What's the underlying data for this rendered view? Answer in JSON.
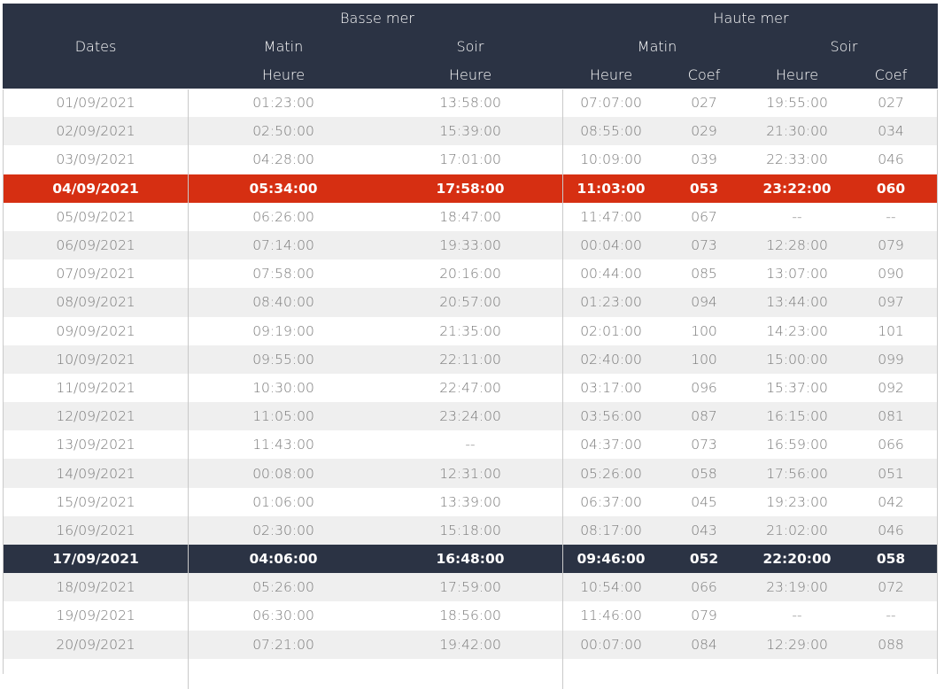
{
  "header": {
    "basse_mer": "Basse mer",
    "haute_mer": "Haute mer",
    "dates": "Dates",
    "matin": "Matin",
    "soir": "Soir",
    "heure": "Heure",
    "coef": "Coef"
  },
  "rows": [
    {
      "date": "01/09/2021",
      "bm_matin": "01:23:00",
      "bm_soir": "13:58:00",
      "hm_matin": "07:07:00",
      "hm_matin_coef": "027",
      "hm_soir": "19:55:00",
      "hm_soir_coef": "027",
      "style": "odd"
    },
    {
      "date": "02/09/2021",
      "bm_matin": "02:50:00",
      "bm_soir": "15:39:00",
      "hm_matin": "08:55:00",
      "hm_matin_coef": "029",
      "hm_soir": "21:30:00",
      "hm_soir_coef": "034",
      "style": "even"
    },
    {
      "date": "03/09/2021",
      "bm_matin": "04:28:00",
      "bm_soir": "17:01:00",
      "hm_matin": "10:09:00",
      "hm_matin_coef": "039",
      "hm_soir": "22:33:00",
      "hm_soir_coef": "046",
      "style": "odd"
    },
    {
      "date": "04/09/2021",
      "bm_matin": "05:34:00",
      "bm_soir": "17:58:00",
      "hm_matin": "11:03:00",
      "hm_matin_coef": "053",
      "hm_soir": "23:22:00",
      "hm_soir_coef": "060",
      "style": "hl-red"
    },
    {
      "date": "05/09/2021",
      "bm_matin": "06:26:00",
      "bm_soir": "18:47:00",
      "hm_matin": "11:47:00",
      "hm_matin_coef": "067",
      "hm_soir": "--",
      "hm_soir_coef": "--",
      "style": "odd"
    },
    {
      "date": "06/09/2021",
      "bm_matin": "07:14:00",
      "bm_soir": "19:33:00",
      "hm_matin": "00:04:00",
      "hm_matin_coef": "073",
      "hm_soir": "12:28:00",
      "hm_soir_coef": "079",
      "style": "even"
    },
    {
      "date": "07/09/2021",
      "bm_matin": "07:58:00",
      "bm_soir": "20:16:00",
      "hm_matin": "00:44:00",
      "hm_matin_coef": "085",
      "hm_soir": "13:07:00",
      "hm_soir_coef": "090",
      "style": "odd"
    },
    {
      "date": "08/09/2021",
      "bm_matin": "08:40:00",
      "bm_soir": "20:57:00",
      "hm_matin": "01:23:00",
      "hm_matin_coef": "094",
      "hm_soir": "13:44:00",
      "hm_soir_coef": "097",
      "style": "even"
    },
    {
      "date": "09/09/2021",
      "bm_matin": "09:19:00",
      "bm_soir": "21:35:00",
      "hm_matin": "02:01:00",
      "hm_matin_coef": "100",
      "hm_soir": "14:23:00",
      "hm_soir_coef": "101",
      "style": "odd"
    },
    {
      "date": "10/09/2021",
      "bm_matin": "09:55:00",
      "bm_soir": "22:11:00",
      "hm_matin": "02:40:00",
      "hm_matin_coef": "100",
      "hm_soir": "15:00:00",
      "hm_soir_coef": "099",
      "style": "even"
    },
    {
      "date": "11/09/2021",
      "bm_matin": "10:30:00",
      "bm_soir": "22:47:00",
      "hm_matin": "03:17:00",
      "hm_matin_coef": "096",
      "hm_soir": "15:37:00",
      "hm_soir_coef": "092",
      "style": "odd"
    },
    {
      "date": "12/09/2021",
      "bm_matin": "11:05:00",
      "bm_soir": "23:24:00",
      "hm_matin": "03:56:00",
      "hm_matin_coef": "087",
      "hm_soir": "16:15:00",
      "hm_soir_coef": "081",
      "style": "even"
    },
    {
      "date": "13/09/2021",
      "bm_matin": "11:43:00",
      "bm_soir": "--",
      "hm_matin": "04:37:00",
      "hm_matin_coef": "073",
      "hm_soir": "16:59:00",
      "hm_soir_coef": "066",
      "style": "odd"
    },
    {
      "date": "14/09/2021",
      "bm_matin": "00:08:00",
      "bm_soir": "12:31:00",
      "hm_matin": "05:26:00",
      "hm_matin_coef": "058",
      "hm_soir": "17:56:00",
      "hm_soir_coef": "051",
      "style": "even"
    },
    {
      "date": "15/09/2021",
      "bm_matin": "01:06:00",
      "bm_soir": "13:39:00",
      "hm_matin": "06:37:00",
      "hm_matin_coef": "045",
      "hm_soir": "19:23:00",
      "hm_soir_coef": "042",
      "style": "odd"
    },
    {
      "date": "16/09/2021",
      "bm_matin": "02:30:00",
      "bm_soir": "15:18:00",
      "hm_matin": "08:17:00",
      "hm_matin_coef": "043",
      "hm_soir": "21:02:00",
      "hm_soir_coef": "046",
      "style": "even"
    },
    {
      "date": "17/09/2021",
      "bm_matin": "04:06:00",
      "bm_soir": "16:48:00",
      "hm_matin": "09:46:00",
      "hm_matin_coef": "052",
      "hm_soir": "22:20:00",
      "hm_soir_coef": "058",
      "style": "hl-dark"
    },
    {
      "date": "18/09/2021",
      "bm_matin": "05:26:00",
      "bm_soir": "17:59:00",
      "hm_matin": "10:54:00",
      "hm_matin_coef": "066",
      "hm_soir": "23:19:00",
      "hm_soir_coef": "072",
      "style": "even"
    },
    {
      "date": "19/09/2021",
      "bm_matin": "06:30:00",
      "bm_soir": "18:56:00",
      "hm_matin": "11:46:00",
      "hm_matin_coef": "079",
      "hm_soir": "--",
      "hm_soir_coef": "--",
      "style": "odd"
    },
    {
      "date": "20/09/2021",
      "bm_matin": "07:21:00",
      "bm_soir": "19:42:00",
      "hm_matin": "00:07:00",
      "hm_matin_coef": "084",
      "hm_soir": "12:29:00",
      "hm_soir_coef": "088",
      "style": "even"
    }
  ]
}
